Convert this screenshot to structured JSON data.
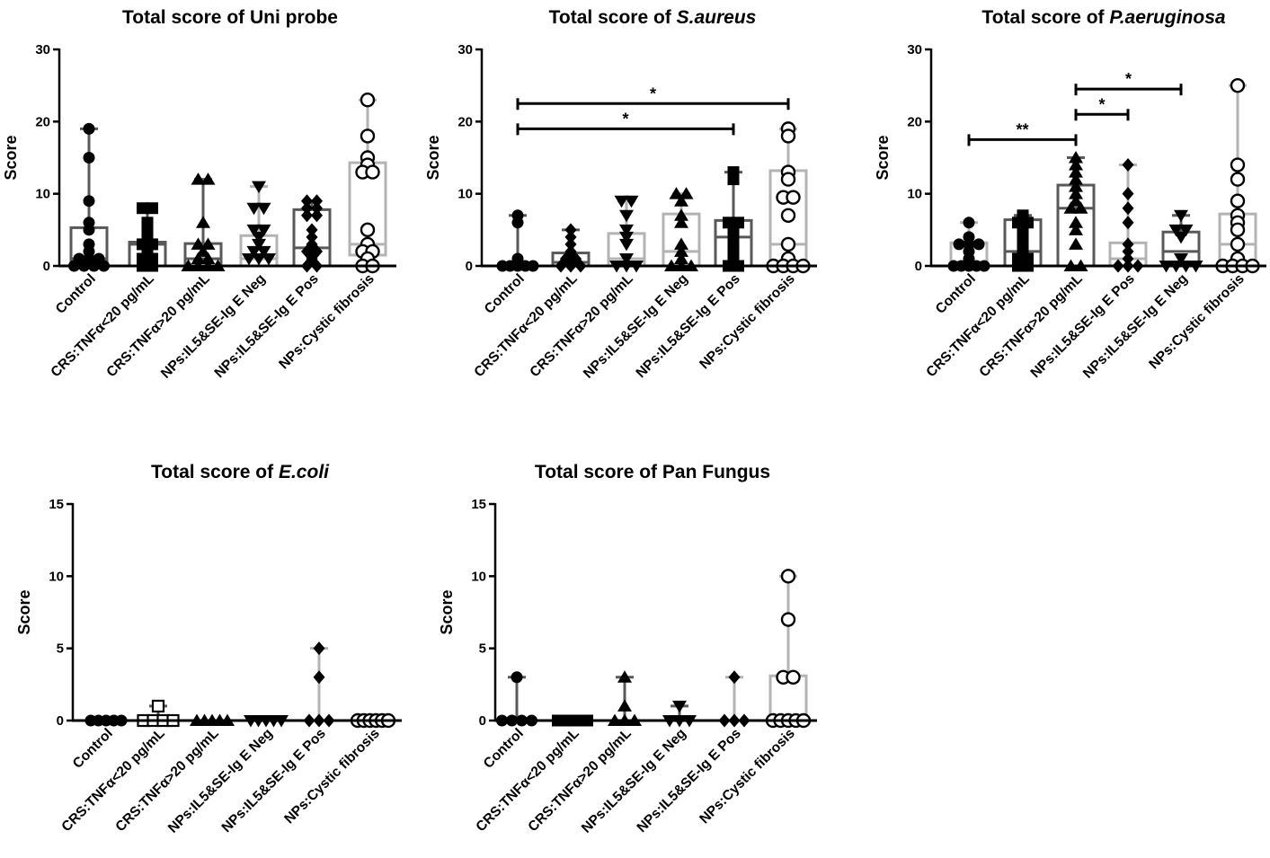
{
  "chart_data": [
    {
      "type": "box",
      "title": "Total score of ",
      "title_italic": "",
      "title_suffix": "Uni probe",
      "ylabel": "Score",
      "ylim": [
        0,
        30
      ],
      "yticks": [
        0,
        10,
        20,
        30
      ],
      "categories": [
        "Control",
        "CRS:TNFα<20 pg/mL",
        "CRS:TNFα>20 pg/mL",
        "NPs:IL5&SE-Ig E Neg",
        "NPs:IL5&SE-Ig E Pos",
        "NPs:Cystic fibrosis"
      ],
      "series": [
        {
          "marker": "circle-filled",
          "color": "#595959",
          "box": [
            0,
            1,
            5.3
          ],
          "whisker": [
            0,
            19
          ],
          "points": [
            19,
            15,
            9,
            6,
            5,
            3,
            2,
            1,
            1,
            1,
            0,
            0,
            0,
            0
          ]
        },
        {
          "marker": "square",
          "color": "#595959",
          "box": [
            0,
            3,
            3.3
          ],
          "whisker": [
            0,
            8
          ],
          "points": [
            8,
            8,
            6,
            5,
            4,
            3,
            3,
            2,
            1,
            1,
            0,
            0
          ]
        },
        {
          "marker": "triangle-up",
          "color": "#595959",
          "box": [
            0,
            1,
            3.1
          ],
          "whisker": [
            0,
            12
          ],
          "points": [
            12,
            12,
            6,
            3,
            3,
            2,
            1,
            1,
            0,
            0,
            0,
            0
          ]
        },
        {
          "marker": "triangle-down",
          "color": "#b3b3b3",
          "box": [
            0,
            1,
            4.2
          ],
          "whisker": [
            0,
            11
          ],
          "points": [
            11,
            8,
            8,
            5,
            5,
            4,
            3,
            2,
            2,
            1,
            1,
            1
          ]
        },
        {
          "marker": "diamond",
          "color": "#595959",
          "box": [
            0,
            2.5,
            7.8
          ],
          "whisker": [
            0,
            9
          ],
          "points": [
            9,
            9,
            8,
            8,
            7,
            7,
            5,
            4,
            3,
            2,
            2,
            1,
            0,
            0
          ]
        },
        {
          "marker": "circle-open",
          "color": "#b3b3b3",
          "box": [
            1.5,
            3,
            14.3
          ],
          "whisker": [
            0,
            23
          ],
          "points": [
            23,
            18,
            15,
            14,
            13,
            13,
            5,
            3,
            2,
            2,
            1,
            0,
            0
          ]
        }
      ],
      "significance": []
    },
    {
      "type": "box",
      "title": "Total score of ",
      "title_italic": "S.aureus",
      "title_suffix": "",
      "ylabel": "Score",
      "ylim": [
        0,
        30
      ],
      "yticks": [
        0,
        10,
        20,
        30
      ],
      "categories": [
        "Control",
        "CRS:TNFα<20 pg/mL",
        "CRS:TNFα>20 pg/mL",
        "NPs:IL5&SE-Ig E Neg",
        "NPs:IL5&SE-Ig E Pos",
        "NPs:Cystic fibrosis"
      ],
      "series": [
        {
          "marker": "circle-filled",
          "color": "#595959",
          "box": [
            0,
            0,
            0
          ],
          "whisker": [
            0,
            7
          ],
          "points": [
            7,
            6,
            1,
            0,
            0,
            0,
            0,
            0
          ]
        },
        {
          "marker": "diamond",
          "color": "#595959",
          "box": [
            0,
            0.5,
            1.8
          ],
          "whisker": [
            0,
            5
          ],
          "points": [
            5,
            4,
            3,
            2,
            1,
            1,
            0,
            0,
            0
          ]
        },
        {
          "marker": "triangle-down",
          "color": "#b3b3b3",
          "box": [
            0,
            1,
            4.5
          ],
          "whisker": [
            0,
            9
          ],
          "points": [
            9,
            9,
            7,
            5,
            4,
            3,
            1,
            0,
            0,
            0
          ]
        },
        {
          "marker": "triangle-up",
          "color": "#b3b3b3",
          "box": [
            0,
            2,
            7.2
          ],
          "whisker": [
            0,
            10
          ],
          "points": [
            10,
            10,
            9,
            7,
            6,
            3,
            2,
            1,
            0,
            0,
            0
          ]
        },
        {
          "marker": "square",
          "color": "#595959",
          "box": [
            0,
            4,
            6.3
          ],
          "whisker": [
            0,
            13
          ],
          "points": [
            13,
            12,
            6,
            6,
            5,
            4,
            3,
            2,
            1,
            0,
            0
          ]
        },
        {
          "marker": "circle-open",
          "color": "#b3b3b3",
          "box": [
            0,
            3,
            13.2
          ],
          "whisker": [
            0,
            19
          ],
          "points": [
            19,
            18,
            13,
            12,
            9.5,
            9.5,
            7,
            3,
            1,
            0,
            0,
            0,
            0
          ]
        }
      ],
      "significance": [
        {
          "from": 0,
          "to": 4,
          "y": 19,
          "label": "*"
        },
        {
          "from": 0,
          "to": 5,
          "y": 22.5,
          "label": "*"
        }
      ]
    },
    {
      "type": "box",
      "title": "Total score of ",
      "title_italic": "P.aeruginosa",
      "title_suffix": "",
      "ylabel": "Score",
      "ylim": [
        0,
        30
      ],
      "yticks": [
        0,
        10,
        20,
        30
      ],
      "categories": [
        "Control",
        "CRS:TNFα<20 pg/mL",
        "CRS:TNFα>20 pg/mL",
        "NPs:IL5&SE-Ig E Pos",
        "NPs:IL5&SE-Ig E Neg",
        "NPs:Cystic fibrosis"
      ],
      "series": [
        {
          "marker": "circle-filled",
          "color": "#b3b3b3",
          "box": [
            0,
            0.5,
            3.2
          ],
          "whisker": [
            0,
            6
          ],
          "points": [
            6,
            4,
            3,
            3,
            3,
            2,
            1,
            0,
            0,
            0,
            0,
            0
          ]
        },
        {
          "marker": "square",
          "color": "#595959",
          "box": [
            0,
            2,
            6.4
          ],
          "whisker": [
            0,
            7
          ],
          "points": [
            7,
            6,
            6,
            5,
            4,
            3,
            2,
            1,
            1,
            0,
            0
          ]
        },
        {
          "marker": "triangle-up",
          "color": "#595959",
          "box": [
            0,
            8,
            11.2
          ],
          "whisker": [
            0,
            15
          ],
          "points": [
            15,
            14,
            13,
            12,
            11,
            10,
            9,
            8,
            8,
            6,
            5,
            3,
            0,
            0
          ]
        },
        {
          "marker": "diamond",
          "color": "#b3b3b3",
          "box": [
            0,
            1,
            3.2
          ],
          "whisker": [
            0,
            14
          ],
          "points": [
            14,
            10,
            8,
            6,
            3,
            2,
            1,
            0,
            0,
            0
          ]
        },
        {
          "marker": "triangle-down",
          "color": "#595959",
          "box": [
            0,
            2,
            4.7
          ],
          "whisker": [
            0,
            7
          ],
          "points": [
            7,
            5,
            5,
            4,
            1,
            0,
            0,
            0,
            0
          ]
        },
        {
          "marker": "circle-open",
          "color": "#b3b3b3",
          "box": [
            0,
            3,
            7.2
          ],
          "whisker": [
            0,
            25
          ],
          "points": [
            25,
            14,
            12,
            9,
            7,
            6,
            5,
            3,
            1,
            0,
            0,
            0,
            0
          ]
        }
      ],
      "significance": [
        {
          "from": 0,
          "to": 2,
          "y": 17.5,
          "label": "**"
        },
        {
          "from": 2,
          "to": 3,
          "y": 21,
          "label": "*"
        },
        {
          "from": 2,
          "to": 4,
          "y": 24.5,
          "label": "*"
        }
      ]
    },
    {
      "type": "box",
      "title": "Total score of ",
      "title_italic": "E.coli",
      "title_suffix": "",
      "ylabel": "Score",
      "ylim": [
        0,
        15
      ],
      "yticks": [
        0,
        5,
        10,
        15
      ],
      "categories": [
        "Control",
        "CRS:TNFα<20 pg/mL",
        "CRS:TNFα>20 pg/mL",
        "NPs:IL5&SE-Ig E Neg",
        "NPs:IL5&SE-Ig E Pos",
        "NPs:Cystic fibrosis"
      ],
      "series": [
        {
          "marker": "circle-filled",
          "color": "#595959",
          "box": [
            0,
            0,
            0
          ],
          "whisker": [
            0,
            0
          ],
          "points": [
            0,
            0,
            0,
            0,
            0
          ]
        },
        {
          "marker": "square-open",
          "color": "#595959",
          "box": [
            0,
            0,
            0
          ],
          "whisker": [
            0,
            1
          ],
          "points": [
            1,
            0,
            0,
            0,
            0
          ]
        },
        {
          "marker": "triangle-up",
          "color": "#595959",
          "box": [
            0,
            0,
            0
          ],
          "whisker": [
            0,
            0
          ],
          "points": [
            0,
            0,
            0,
            0,
            0
          ]
        },
        {
          "marker": "triangle-down",
          "color": "#595959",
          "box": [
            0,
            0,
            0
          ],
          "whisker": [
            0,
            0
          ],
          "points": [
            0,
            0,
            0,
            0,
            0
          ]
        },
        {
          "marker": "diamond",
          "color": "#b3b3b3",
          "box": [
            0,
            0,
            0
          ],
          "whisker": [
            0,
            5
          ],
          "points": [
            5,
            3,
            0,
            0,
            0
          ]
        },
        {
          "marker": "circle-open",
          "color": "#595959",
          "box": [
            0,
            0,
            0
          ],
          "whisker": [
            0,
            0
          ],
          "points": [
            0,
            0,
            0,
            0,
            0,
            0
          ]
        }
      ],
      "significance": []
    },
    {
      "type": "box",
      "title": "Total score of Pan Fungus",
      "title_italic": "",
      "title_suffix": "",
      "ylabel": "Score",
      "ylim": [
        0,
        15
      ],
      "yticks": [
        0,
        5,
        10,
        15
      ],
      "categories": [
        "Control",
        "CRS:TNFα<20 pg/mL",
        "CRS:TNFα>20 pg/mL",
        "NPs:IL5&SE-Ig E Neg",
        "NPs:IL5&SE-Ig E Pos",
        "NPs:Cystic fibrosis"
      ],
      "series": [
        {
          "marker": "circle-filled",
          "color": "#595959",
          "box": [
            0,
            0,
            0
          ],
          "whisker": [
            0,
            3
          ],
          "points": [
            3,
            0,
            0,
            0,
            0
          ]
        },
        {
          "marker": "square",
          "color": "#595959",
          "box": [
            0,
            0,
            0
          ],
          "whisker": [
            0,
            0
          ],
          "points": [
            0,
            0,
            0,
            0
          ]
        },
        {
          "marker": "triangle-up",
          "color": "#595959",
          "box": [
            0,
            0,
            0
          ],
          "whisker": [
            0,
            3
          ],
          "points": [
            3,
            1,
            0,
            0,
            0
          ]
        },
        {
          "marker": "triangle-down",
          "color": "#595959",
          "box": [
            0,
            0,
            0
          ],
          "whisker": [
            0,
            1
          ],
          "points": [
            1,
            0,
            0,
            0
          ]
        },
        {
          "marker": "diamond",
          "color": "#b3b3b3",
          "box": [
            0,
            0,
            0
          ],
          "whisker": [
            0,
            3
          ],
          "points": [
            3,
            0,
            0,
            0
          ]
        },
        {
          "marker": "circle-open",
          "color": "#b3b3b3",
          "box": [
            0,
            0,
            3.1
          ],
          "whisker": [
            0,
            10
          ],
          "points": [
            10,
            7,
            3,
            3,
            0,
            0,
            0,
            0,
            0
          ]
        }
      ],
      "significance": []
    }
  ]
}
